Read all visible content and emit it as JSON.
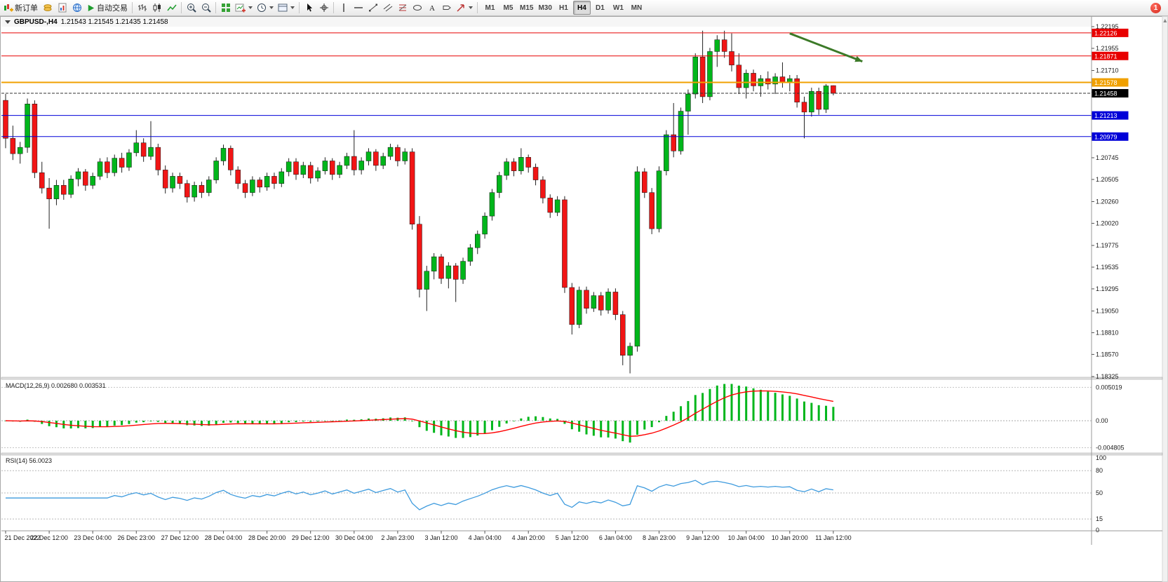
{
  "toolbar": {
    "new_order": "新订单",
    "auto_trading": "自动交易",
    "timeframes": [
      "M1",
      "M5",
      "M15",
      "M30",
      "H1",
      "H4",
      "D1",
      "W1",
      "MN"
    ],
    "active_timeframe": "H4",
    "notification_count": "1"
  },
  "chart_header": {
    "title": "GBPUSD-,H4",
    "ohlc": "1.21543 1.21545 1.21435 1.21458"
  },
  "indicators": {
    "macd_label": "MACD(12,26,9) 0.002680 0.003531",
    "rsi_label": "RSI(14) 56.0023"
  },
  "chart_data": {
    "type": "candlestick",
    "symbol": "GBPUSD-",
    "timeframe": "H4",
    "ohlc_display": {
      "open": "1.21543",
      "high": "1.21545",
      "low": "1.21435",
      "close": "1.21458"
    },
    "colors": {
      "up": "#00B61B",
      "down": "#F11515",
      "wick": "#222222",
      "background": "#FFFFFF",
      "macd_signal": "#FF0000",
      "rsi_line": "#3E9BDE"
    },
    "price_axis": {
      "max": 1.22195,
      "min": 1.18325,
      "ticks": [
        "1.22195",
        "1.21955",
        "1.21710",
        "1.21470",
        "1.21230",
        "1.20990",
        "1.20745",
        "1.20505",
        "1.20260",
        "1.20020",
        "1.19775",
        "1.19535",
        "1.19295",
        "1.19050",
        "1.18810",
        "1.18570",
        "1.18325"
      ]
    },
    "time_labels": [
      "21 Dec 2022",
      "22 Dec 12:00",
      "23 Dec 04:00",
      "26 Dec 23:00",
      "27 Dec 12:00",
      "28 Dec 04:00",
      "28 Dec 20:00",
      "29 Dec 12:00",
      "30 Dec 04:00",
      "2 Jan 23:00",
      "3 Jan 12:00",
      "4 Jan 04:00",
      "4 Jan 20:00",
      "5 Jan 12:00",
      "6 Jan 04:00",
      "8 Jan 23:00",
      "9 Jan 12:00",
      "10 Jan 04:00",
      "10 Jan 20:00",
      "11 Jan 12:00"
    ],
    "horizontal_lines": [
      {
        "price": 1.22126,
        "label": "1.22126",
        "color": "#E80000",
        "width": 1
      },
      {
        "price": 1.21871,
        "label": "1.21871",
        "color": "#E80000",
        "width": 1
      },
      {
        "price": 1.21578,
        "label": "1.21578",
        "color": "#F0A000",
        "width": 2
      },
      {
        "price": 1.21213,
        "label": "1.21213",
        "color": "#0000D8",
        "width": 1
      },
      {
        "price": 1.20979,
        "label": "1.20979",
        "color": "#0000D8",
        "width": 1
      }
    ],
    "current_price": {
      "value": 1.21458,
      "label": "1.21458",
      "color": "#000000"
    },
    "arrow": {
      "from": {
        "bar": 108,
        "price": 1.2212
      },
      "to": {
        "bar": 118,
        "price": 1.2181
      },
      "color": "#3C7A28"
    },
    "indicators": {
      "macd": {
        "params": [
          12,
          26,
          9
        ],
        "main": 0.00268,
        "signal": 0.003531,
        "scale": {
          "max": 0.005019,
          "zero": 0.0,
          "min": -0.004805
        },
        "scale_labels": [
          "0.005019",
          "0.00",
          "-0.004805"
        ]
      },
      "rsi": {
        "params": [
          14
        ],
        "value": 56.0023,
        "scale_labels": [
          "100",
          "80",
          "50",
          "15",
          "0"
        ],
        "dashed_levels": [
          80,
          50,
          15
        ]
      }
    },
    "candles": [
      [
        1.2138,
        1.2145,
        1.2085,
        1.2096
      ],
      [
        1.2096,
        1.211,
        1.2072,
        1.2079
      ],
      [
        1.2079,
        1.2092,
        1.2068,
        1.2086
      ],
      [
        1.2086,
        1.214,
        1.208,
        1.2134
      ],
      [
        1.2134,
        1.2138,
        1.2052,
        1.2058
      ],
      [
        1.2058,
        1.207,
        1.2035,
        1.2041
      ],
      [
        1.2041,
        1.2052,
        1.1996,
        1.2029
      ],
      [
        1.2029,
        1.205,
        1.2022,
        1.2044
      ],
      [
        1.2044,
        1.205,
        1.2028,
        1.2034
      ],
      [
        1.2034,
        1.2055,
        1.203,
        1.2051
      ],
      [
        1.2051,
        1.2063,
        1.2043,
        1.2059
      ],
      [
        1.2059,
        1.2062,
        1.2038,
        1.2044
      ],
      [
        1.2044,
        1.2058,
        1.204,
        1.2054
      ],
      [
        1.2054,
        1.2074,
        1.205,
        1.207
      ],
      [
        1.207,
        1.2075,
        1.2052,
        1.2058
      ],
      [
        1.2058,
        1.2078,
        1.2054,
        1.2074
      ],
      [
        1.2074,
        1.208,
        1.2058,
        1.2064
      ],
      [
        1.2064,
        1.2084,
        1.206,
        1.208
      ],
      [
        1.208,
        1.2105,
        1.2076,
        1.2091
      ],
      [
        1.2091,
        1.2096,
        1.207,
        1.2076
      ],
      [
        1.2076,
        1.2115,
        1.2072,
        1.2086
      ],
      [
        1.2086,
        1.209,
        1.2055,
        1.2061
      ],
      [
        1.2061,
        1.2066,
        1.2035,
        1.2041
      ],
      [
        1.2041,
        1.2058,
        1.2036,
        1.2054
      ],
      [
        1.2054,
        1.2058,
        1.204,
        1.2046
      ],
      [
        1.2046,
        1.205,
        1.2025,
        1.2031
      ],
      [
        1.2031,
        1.2048,
        1.2026,
        1.2044
      ],
      [
        1.2044,
        1.2048,
        1.203,
        1.2036
      ],
      [
        1.2036,
        1.2054,
        1.2032,
        1.205
      ],
      [
        1.205,
        1.2075,
        1.2046,
        1.2071
      ],
      [
        1.2071,
        1.2089,
        1.2066,
        1.2085
      ],
      [
        1.2085,
        1.2088,
        1.2055,
        1.2061
      ],
      [
        1.2061,
        1.2065,
        1.204,
        1.2046
      ],
      [
        1.2046,
        1.205,
        1.203,
        1.2036
      ],
      [
        1.2036,
        1.2054,
        1.2032,
        1.205
      ],
      [
        1.205,
        1.2053,
        1.2036,
        1.2042
      ],
      [
        1.2042,
        1.2058,
        1.2038,
        1.2054
      ],
      [
        1.2054,
        1.2058,
        1.204,
        1.2046
      ],
      [
        1.2046,
        1.2063,
        1.2042,
        1.2059
      ],
      [
        1.2059,
        1.2074,
        1.2054,
        1.207
      ],
      [
        1.207,
        1.2074,
        1.205,
        1.2056
      ],
      [
        1.2056,
        1.207,
        1.2052,
        1.2066
      ],
      [
        1.2066,
        1.207,
        1.2046,
        1.2052
      ],
      [
        1.2052,
        1.2064,
        1.2048,
        1.206
      ],
      [
        1.206,
        1.2075,
        1.2056,
        1.2071
      ],
      [
        1.2071,
        1.2074,
        1.205,
        1.2056
      ],
      [
        1.2056,
        1.207,
        1.2052,
        1.2066
      ],
      [
        1.2066,
        1.208,
        1.2062,
        1.2076
      ],
      [
        1.2076,
        1.2105,
        1.2055,
        1.2061
      ],
      [
        1.2061,
        1.2075,
        1.2056,
        1.2071
      ],
      [
        1.2071,
        1.2085,
        1.2066,
        1.2081
      ],
      [
        1.2081,
        1.2084,
        1.206,
        1.2066
      ],
      [
        1.2066,
        1.208,
        1.2062,
        1.2076
      ],
      [
        1.2076,
        1.209,
        1.2072,
        1.2086
      ],
      [
        1.2086,
        1.2089,
        1.2065,
        1.2071
      ],
      [
        1.2071,
        1.2085,
        1.2067,
        1.2081
      ],
      [
        1.2081,
        1.2085,
        1.1995,
        1.2001
      ],
      [
        1.2001,
        1.201,
        1.192,
        1.1929
      ],
      [
        1.1929,
        1.1955,
        1.1905,
        1.1949
      ],
      [
        1.1949,
        1.1969,
        1.194,
        1.1965
      ],
      [
        1.1965,
        1.1968,
        1.1935,
        1.1941
      ],
      [
        1.1941,
        1.1959,
        1.193,
        1.1955
      ],
      [
        1.1955,
        1.1958,
        1.1915,
        1.194
      ],
      [
        1.194,
        1.1964,
        1.1935,
        1.196
      ],
      [
        1.196,
        1.1979,
        1.1955,
        1.1975
      ],
      [
        1.1975,
        1.1994,
        1.1968,
        1.199
      ],
      [
        1.199,
        1.2014,
        1.1985,
        1.201
      ],
      [
        1.201,
        1.204,
        1.2005,
        1.2036
      ],
      [
        1.2036,
        1.2059,
        1.203,
        1.2055
      ],
      [
        1.2055,
        1.2074,
        1.205,
        1.207
      ],
      [
        1.207,
        1.2074,
        1.2054,
        1.206
      ],
      [
        1.206,
        1.2085,
        1.2056,
        1.2075
      ],
      [
        1.2075,
        1.2078,
        1.2058,
        1.2064
      ],
      [
        1.2064,
        1.2068,
        1.2044,
        1.205
      ],
      [
        1.205,
        1.2054,
        1.2024,
        1.203
      ],
      [
        1.203,
        1.2034,
        1.2008,
        1.2014
      ],
      [
        1.2014,
        1.2032,
        1.201,
        1.2028
      ],
      [
        1.2028,
        1.2032,
        1.1925,
        1.1931
      ],
      [
        1.1931,
        1.1936,
        1.1879,
        1.189
      ],
      [
        1.189,
        1.1932,
        1.1886,
        1.1928
      ],
      [
        1.1928,
        1.1932,
        1.1902,
        1.1908
      ],
      [
        1.1908,
        1.1926,
        1.1904,
        1.1922
      ],
      [
        1.1922,
        1.1926,
        1.19,
        1.1906
      ],
      [
        1.1906,
        1.193,
        1.1902,
        1.1926
      ],
      [
        1.1926,
        1.193,
        1.1895,
        1.1901
      ],
      [
        1.1901,
        1.1905,
        1.1845,
        1.1856
      ],
      [
        1.1856,
        1.187,
        1.1836,
        1.1866
      ],
      [
        1.1866,
        1.2065,
        1.186,
        1.2059
      ],
      [
        1.2059,
        1.2063,
        1.203,
        1.2036
      ],
      [
        1.2036,
        1.2041,
        1.199,
        1.1996
      ],
      [
        1.1996,
        1.2065,
        1.1992,
        1.206
      ],
      [
        1.206,
        1.2105,
        1.2055,
        1.21
      ],
      [
        1.21,
        1.2135,
        1.2075,
        1.2082
      ],
      [
        1.2082,
        1.213,
        1.2078,
        1.2126
      ],
      [
        1.2126,
        1.215,
        1.21,
        1.2145
      ],
      [
        1.2145,
        1.219,
        1.214,
        1.2186
      ],
      [
        1.2186,
        1.2215,
        1.2135,
        1.2142
      ],
      [
        1.2142,
        1.2196,
        1.2138,
        1.2192
      ],
      [
        1.2192,
        1.221,
        1.2175,
        1.2205
      ],
      [
        1.2205,
        1.2215,
        1.2185,
        1.2192
      ],
      [
        1.2192,
        1.2212,
        1.217,
        1.2177
      ],
      [
        1.2177,
        1.219,
        1.2145,
        1.2152
      ],
      [
        1.2152,
        1.2172,
        1.214,
        1.2168
      ],
      [
        1.2168,
        1.2172,
        1.2148,
        1.2154
      ],
      [
        1.2154,
        1.2166,
        1.2142,
        1.2162
      ],
      [
        1.2162,
        1.217,
        1.215,
        1.2156
      ],
      [
        1.2156,
        1.2168,
        1.2145,
        1.2164
      ],
      [
        1.2164,
        1.218,
        1.2152,
        1.2158
      ],
      [
        1.2158,
        1.2166,
        1.2148,
        1.2162
      ],
      [
        1.2162,
        1.2166,
        1.213,
        1.2136
      ],
      [
        1.2136,
        1.2142,
        1.2096,
        1.2125
      ],
      [
        1.2125,
        1.2152,
        1.212,
        1.2148
      ],
      [
        1.2148,
        1.2152,
        1.2122,
        1.2128
      ],
      [
        1.2128,
        1.2156,
        1.2124,
        1.2154
      ],
      [
        1.21543,
        1.21545,
        1.21435,
        1.21458
      ]
    ]
  }
}
